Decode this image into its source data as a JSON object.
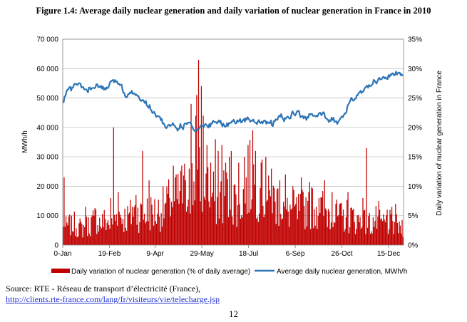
{
  "figure_title": "Figure 1.4: Average daily nuclear generation and daily variation of nuclear generation in France in 2010",
  "source": {
    "label": "Source: RTE - Réseau de transport d’électricité (France),",
    "url": "http://clients.rte-france.com/lang/fr/visiteurs/vie/telecharge.jsp"
  },
  "page_number": "12",
  "chart_data": {
    "type": "bar+line",
    "title": "",
    "xlabel": "",
    "ylabel_left": "MWh/h",
    "ylabel_right": "Daily variation of nuclear generation in France",
    "x_ticks": [
      "0-Jan",
      "19-Feb",
      "9-Apr",
      "29-May",
      "18-Jul",
      "6-Sep",
      "26-Oct",
      "15-Dec"
    ],
    "x_tick_days": [
      0,
      50,
      99,
      149,
      199,
      249,
      299,
      349
    ],
    "xlim_days": [
      0,
      365
    ],
    "ylim_left": [
      0,
      70000
    ],
    "y_ticks_left": [
      "0",
      "10 000",
      "20 000",
      "30 000",
      "40 000",
      "50 000",
      "60 000",
      "70 000"
    ],
    "ylim_right": [
      0,
      35
    ],
    "y_ticks_right": [
      "0%",
      "5%",
      "10%",
      "15%",
      "20%",
      "25%",
      "30%",
      "35%"
    ],
    "grid": true,
    "legend_position": "bottom",
    "colors": {
      "bars": "#c00000",
      "line": "#2e75b6",
      "grid": "#bfbfbf"
    },
    "series": [
      {
        "name": "Daily variation of nuclear generation (% of daily average)",
        "axis": "right",
        "kind": "bar",
        "days": [
          0,
          5,
          10,
          15,
          20,
          25,
          30,
          35,
          40,
          45,
          50,
          55,
          60,
          65,
          70,
          75,
          80,
          85,
          90,
          95,
          100,
          105,
          110,
          115,
          120,
          125,
          130,
          135,
          140,
          145,
          150,
          155,
          160,
          165,
          170,
          175,
          180,
          185,
          190,
          195,
          200,
          205,
          210,
          215,
          220,
          225,
          230,
          235,
          240,
          245,
          250,
          255,
          260,
          265,
          270,
          275,
          280,
          285,
          290,
          295,
          300,
          305,
          310,
          315,
          320,
          325,
          330,
          335,
          340,
          345,
          350,
          355,
          360,
          365
        ],
        "values": [
          3,
          3.5,
          4,
          3.5,
          3,
          3.5,
          4,
          5,
          4,
          4.5,
          4,
          5,
          5.5,
          5,
          5,
          6,
          6,
          5.5,
          6,
          6,
          6,
          6.5,
          7,
          8,
          8,
          9,
          10,
          10.5,
          11,
          12,
          11.5,
          10,
          9,
          8,
          9,
          9.5,
          8,
          8.5,
          8,
          10,
          12,
          12,
          11,
          9,
          8,
          8,
          8,
          7,
          6,
          6.5,
          6,
          6.5,
          7,
          7.5,
          7,
          6.5,
          6.5,
          6,
          5.5,
          5,
          5,
          5.5,
          5,
          4.5,
          4.5,
          4,
          4,
          4.5,
          4,
          4,
          4,
          3.5,
          3.5,
          3.5
        ],
        "peaks": [
          [
            1,
            11.5
          ],
          [
            9,
            5
          ],
          [
            24,
            6.5
          ],
          [
            33,
            5
          ],
          [
            51,
            8
          ],
          [
            54,
            20
          ],
          [
            59,
            9
          ],
          [
            74,
            6.5
          ],
          [
            78,
            8.5
          ],
          [
            85,
            16
          ],
          [
            92,
            11
          ],
          [
            114,
            8
          ],
          [
            118,
            13.5
          ],
          [
            121,
            12
          ],
          [
            127,
            13.5
          ],
          [
            131,
            11
          ],
          [
            135,
            13
          ],
          [
            137,
            24
          ],
          [
            142,
            22
          ],
          [
            143,
            25.5
          ],
          [
            145,
            31.5
          ],
          [
            148,
            27
          ],
          [
            150,
            22
          ],
          [
            154,
            17
          ],
          [
            158,
            14
          ],
          [
            163,
            18
          ],
          [
            166,
            16
          ],
          [
            170,
            17
          ],
          [
            174,
            14
          ],
          [
            178,
            15
          ],
          [
            180,
            16
          ],
          [
            188,
            14
          ],
          [
            194,
            15
          ],
          [
            198,
            17
          ],
          [
            203,
            19.5
          ],
          [
            206,
            16
          ],
          [
            212,
            14
          ],
          [
            217,
            15
          ],
          [
            223,
            13
          ],
          [
            232,
            11
          ],
          [
            238,
            12
          ],
          [
            246,
            10
          ],
          [
            255,
            11.5
          ],
          [
            263,
            9
          ],
          [
            274,
            8
          ],
          [
            280,
            11
          ],
          [
            288,
            9
          ],
          [
            292,
            7
          ],
          [
            305,
            9
          ],
          [
            321,
            8
          ],
          [
            325,
            16.5
          ],
          [
            338,
            7.5
          ],
          [
            347,
            6
          ],
          [
            352,
            6.5
          ],
          [
            356,
            7
          ],
          [
            360,
            4
          ]
        ]
      },
      {
        "name": "Average daily nuclear generation, MWh/h",
        "axis": "left",
        "kind": "line",
        "days": [
          0,
          3,
          6,
          9,
          12,
          15,
          18,
          21,
          24,
          27,
          30,
          33,
          36,
          39,
          42,
          45,
          48,
          51,
          54,
          57,
          60,
          63,
          66,
          69,
          72,
          75,
          78,
          81,
          84,
          87,
          90,
          93,
          96,
          99,
          102,
          105,
          108,
          111,
          114,
          117,
          120,
          123,
          126,
          129,
          132,
          135,
          138,
          141,
          144,
          147,
          150,
          153,
          156,
          159,
          162,
          165,
          168,
          171,
          174,
          177,
          180,
          183,
          186,
          189,
          192,
          195,
          198,
          201,
          204,
          207,
          210,
          213,
          216,
          219,
          222,
          225,
          228,
          231,
          234,
          237,
          240,
          243,
          246,
          249,
          252,
          255,
          258,
          261,
          264,
          267,
          270,
          273,
          276,
          279,
          282,
          285,
          288,
          291,
          294,
          297,
          300,
          303,
          306,
          309,
          312,
          315,
          318,
          321,
          324,
          327,
          330,
          333,
          336,
          339,
          342,
          345,
          348,
          351,
          354,
          357,
          360,
          363
        ],
        "values": [
          48000,
          51000,
          53500,
          53000,
          54000,
          55000,
          54500,
          53500,
          53000,
          52500,
          53500,
          53000,
          54000,
          54000,
          53500,
          53000,
          53500,
          55000,
          55500,
          56000,
          55000,
          54000,
          51500,
          50500,
          52500,
          52000,
          51500,
          50000,
          49000,
          49500,
          48000,
          47000,
          45500,
          44500,
          43500,
          43000,
          41000,
          40000,
          40500,
          41500,
          40000,
          39500,
          40500,
          40000,
          41000,
          42000,
          41000,
          38500,
          39500,
          40500,
          40000,
          41000,
          40000,
          41500,
          42000,
          41500,
          42000,
          41000,
          40500,
          41000,
          42000,
          43000,
          41500,
          42500,
          42000,
          42500,
          43000,
          42500,
          43000,
          41000,
          42000,
          41500,
          42500,
          41500,
          42000,
          41000,
          42500,
          43000,
          44000,
          42500,
          43500,
          42500,
          45000,
          44500,
          45500,
          44000,
          43500,
          42500,
          44000,
          44500,
          43500,
          44000,
          44500,
          45000,
          43500,
          42500,
          43000,
          42500,
          41500,
          42500,
          43500,
          45000,
          48000,
          50000,
          49000,
          50500,
          51500,
          52500,
          53500,
          53500,
          54500,
          55500,
          55000,
          56500,
          57000,
          56500,
          57000,
          57500,
          58000,
          58500,
          58500,
          58000
        ]
      }
    ]
  }
}
